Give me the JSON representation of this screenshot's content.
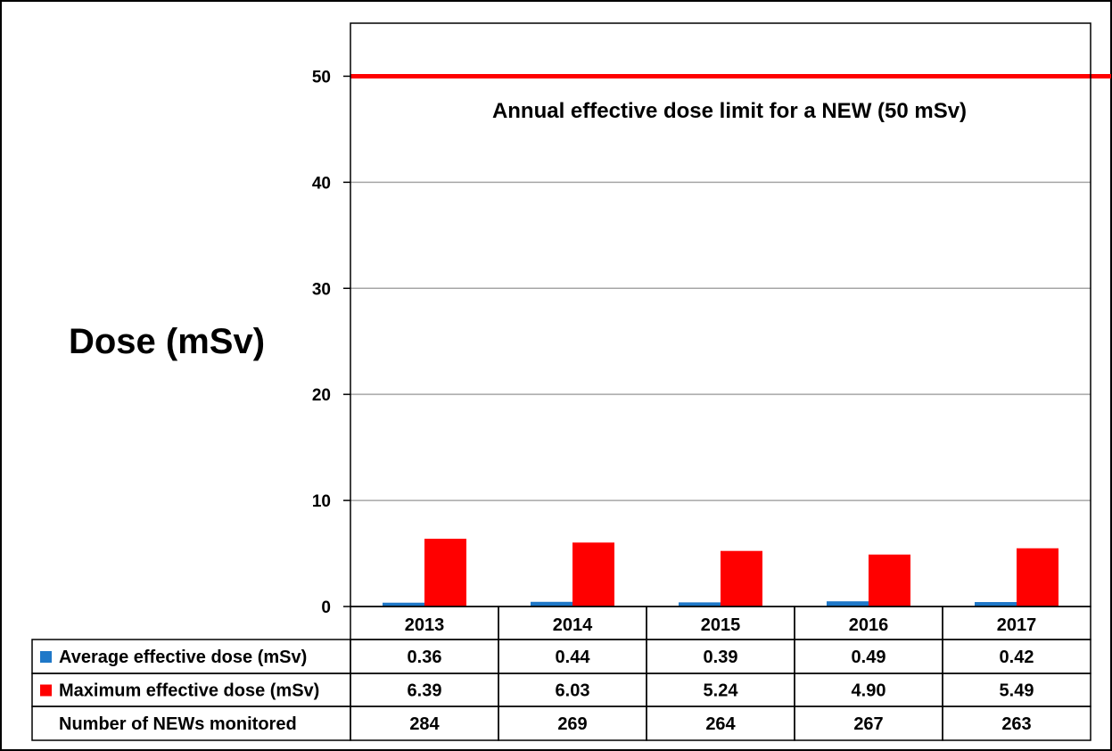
{
  "chart_data": {
    "type": "bar",
    "ylabel": "Dose (mSv)",
    "ylim": [
      0,
      55
    ],
    "yticks": [
      0,
      10,
      20,
      30,
      40,
      50
    ],
    "grid": true,
    "legend": "table-below",
    "categories": [
      "2013",
      "2014",
      "2015",
      "2016",
      "2017"
    ],
    "series": [
      {
        "name": "Average effective dose (mSv)",
        "color": "#1f78c8",
        "values": [
          0.36,
          0.44,
          0.39,
          0.49,
          0.42
        ],
        "labels": [
          "0.36",
          "0.44",
          "0.39",
          "0.49",
          "0.42"
        ]
      },
      {
        "name": "Maximum effective dose (mSv)",
        "color": "#ff0000",
        "values": [
          6.39,
          6.03,
          5.24,
          4.9,
          5.49
        ],
        "labels": [
          "6.39",
          "6.03",
          "5.24",
          "4.90",
          "5.49"
        ]
      }
    ],
    "reference_line": {
      "value": 50,
      "color": "#ff0000",
      "label": "Annual effective dose limit for a NEW (50 mSv)"
    },
    "table_extra_row": {
      "label": "Number of NEWs monitored",
      "values": [
        "284",
        "269",
        "264",
        "267",
        "263"
      ]
    }
  }
}
